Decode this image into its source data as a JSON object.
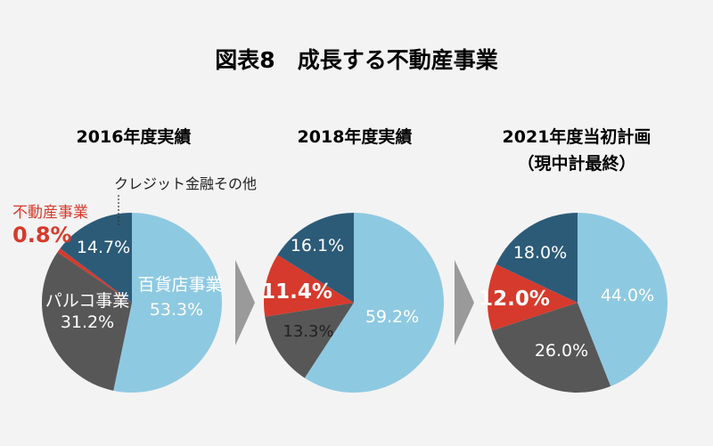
{
  "title": "図表8　成長する不動産事業",
  "colors": {
    "百貨店事業": "#8ec9e2",
    "パルコ事業": "#575757",
    "不動産事業": "#d63a2c",
    "クレジット金融その他": "#2c5b78",
    "arrow": "#9a9a9a",
    "background": "#f3f3f3"
  },
  "chart_data": [
    {
      "type": "pie",
      "title": "2016年度実績",
      "slices": [
        {
          "name": "百貨店事業",
          "value": 53.3,
          "label": "53.3%"
        },
        {
          "name": "パルコ事業",
          "value": 31.2,
          "label": "31.2%"
        },
        {
          "name": "不動産事業",
          "value": 0.8,
          "label": "0.8%"
        },
        {
          "name": "クレジット金融その他",
          "value": 14.7,
          "label": "14.7%"
        }
      ]
    },
    {
      "type": "pie",
      "title": "2018年度実績",
      "slices": [
        {
          "name": "百貨店事業",
          "value": 59.2,
          "label": "59.2%"
        },
        {
          "name": "パルコ事業",
          "value": 13.3,
          "label": "13.3%"
        },
        {
          "name": "不動産事業",
          "value": 11.4,
          "label": "11.4%"
        },
        {
          "name": "クレジット金融その他",
          "value": 16.1,
          "label": "16.1%"
        }
      ]
    },
    {
      "type": "pie",
      "title": "2021年度当初計画",
      "subtitle": "（現中計最終）",
      "slices": [
        {
          "name": "百貨店事業",
          "value": 44.0,
          "label": "44.0%"
        },
        {
          "name": "パルコ事業",
          "value": 26.0,
          "label": "26.0%"
        },
        {
          "name": "不動産事業",
          "value": 12.0,
          "label": "12.0%"
        },
        {
          "name": "クレジット金融その他",
          "value": 18.0,
          "label": "18.0%"
        }
      ]
    }
  ]
}
